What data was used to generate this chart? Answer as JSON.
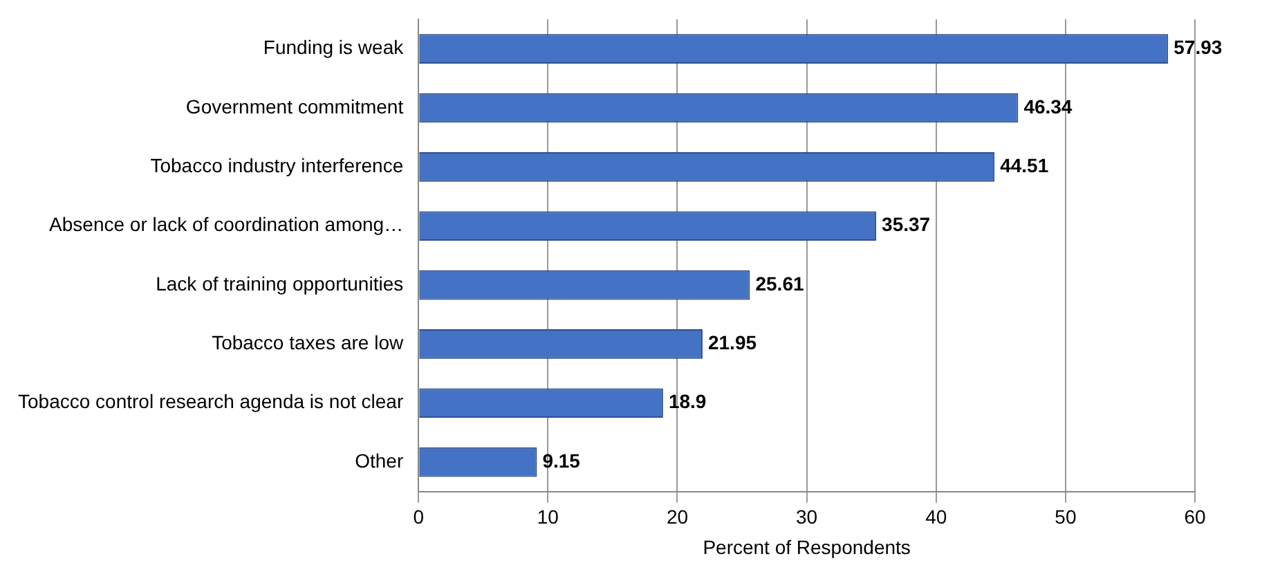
{
  "chart_data": {
    "type": "bar",
    "orientation": "horizontal",
    "xlabel": "Percent of Respondents",
    "categories": [
      "Funding is weak",
      "Government commitment",
      "Tobacco industry interference",
      "Absence or lack of coordination among…",
      "Lack of training opportunities",
      "Tobacco taxes are low",
      "Tobacco control research agenda is not clear",
      "Other"
    ],
    "values": [
      57.93,
      46.34,
      44.51,
      35.37,
      25.61,
      21.95,
      18.9,
      9.15
    ],
    "color": "#4472c4",
    "xlim": [
      0,
      60
    ],
    "xticks": [
      0,
      10,
      20,
      30,
      40,
      50,
      60
    ],
    "grid": "x",
    "data_labels": true
  }
}
